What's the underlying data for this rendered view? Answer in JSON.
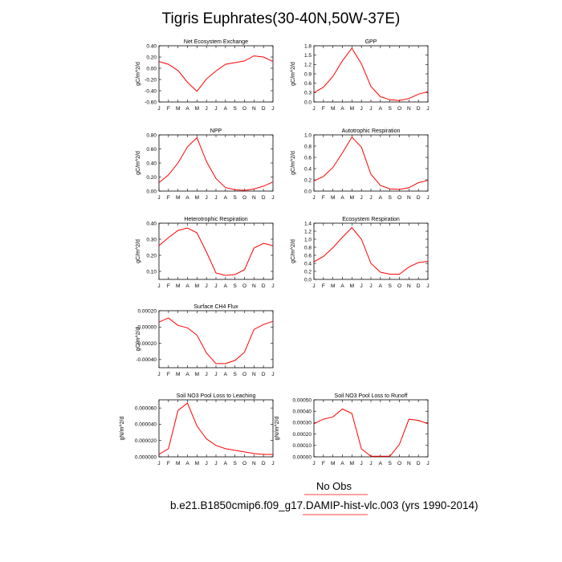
{
  "title": "Tigris Euphrates(30-40N,50W-37E)",
  "months": [
    "J",
    "F",
    "M",
    "A",
    "M",
    "J",
    "J",
    "A",
    "S",
    "O",
    "N",
    "D",
    "J"
  ],
  "legend": {
    "label": "No Obs"
  },
  "case": {
    "prefix": "b.e21.B1850cmip6.f09_g17.",
    "suffix": "DAMIP-hist-vlc.003 (yrs 1990-2014)"
  },
  "colors": {
    "series": "#ff0000",
    "axis": "#000000",
    "legend_line": "#ff0000",
    "obs_line": "#ff0000"
  },
  "chart_data": [
    {
      "type": "line",
      "title": "Net Ecosystem Exchange",
      "ylabel": "gC/m^2/d",
      "ylim": [
        -0.6,
        0.4
      ],
      "yticks": [
        "0.40",
        "0.20",
        "0.00",
        "-0.20",
        "-0.40",
        "-0.60"
      ],
      "ytick_values": [
        0.4,
        0.2,
        0,
        -0.2,
        -0.4,
        -0.6
      ],
      "values": [
        0.12,
        0.07,
        -0.04,
        -0.25,
        -0.41,
        -0.19,
        -0.05,
        0.07,
        0.1,
        0.13,
        0.22,
        0.2,
        0.12
      ]
    },
    {
      "type": "line",
      "title": "GPP",
      "ylabel": "gC/m^2/d",
      "ylim": [
        0,
        1.8
      ],
      "yticks": [
        "1.8",
        "1.5",
        "1.2",
        "0.9",
        "0.6",
        "0.3",
        "0.0"
      ],
      "ytick_values": [
        1.8,
        1.5,
        1.2,
        0.9,
        0.6,
        0.3,
        0
      ],
      "values": [
        0.3,
        0.47,
        0.82,
        1.32,
        1.72,
        1.22,
        0.5,
        0.17,
        0.07,
        0.05,
        0.11,
        0.25,
        0.33
      ]
    },
    {
      "type": "line",
      "title": "NPP",
      "ylabel": "gC/m^2/d",
      "ylim": [
        0,
        0.8
      ],
      "yticks": [
        "0.80",
        "0.60",
        "0.40",
        "0.20",
        "0.00"
      ],
      "ytick_values": [
        0.8,
        0.6,
        0.4,
        0.2,
        0
      ],
      "values": [
        0.12,
        0.23,
        0.4,
        0.63,
        0.76,
        0.42,
        0.18,
        0.05,
        0.02,
        0.01,
        0.03,
        0.07,
        0.13
      ]
    },
    {
      "type": "line",
      "title": "Autotrophic Respiration",
      "ylabel": "gC/m^2/d",
      "ylim": [
        0,
        1.0
      ],
      "yticks": [
        "1.0",
        "0.8",
        "0.6",
        "0.4",
        "0.2",
        "0.0"
      ],
      "ytick_values": [
        1,
        0.8,
        0.6,
        0.4,
        0.2,
        0
      ],
      "values": [
        0.18,
        0.26,
        0.42,
        0.68,
        0.96,
        0.78,
        0.3,
        0.1,
        0.04,
        0.03,
        0.06,
        0.15,
        0.19
      ]
    },
    {
      "type": "line",
      "title": "Heterotrophic Respiration",
      "ylabel": "gC/m^2/d",
      "ylim": [
        0.05,
        0.4
      ],
      "yticks": [
        "0.40",
        "0.30",
        "0.20",
        "0.10"
      ],
      "ytick_values": [
        0.4,
        0.3,
        0.2,
        0.1
      ],
      "values": [
        0.26,
        0.31,
        0.355,
        0.37,
        0.34,
        0.22,
        0.09,
        0.075,
        0.08,
        0.11,
        0.245,
        0.275,
        0.26
      ]
    },
    {
      "type": "line",
      "title": "Ecosystem Respiration",
      "ylabel": "gC/m^2/d",
      "ylim": [
        0,
        1.4
      ],
      "yticks": [
        "1.4",
        "1.2",
        "1.0",
        "0.8",
        "0.6",
        "0.4",
        "0.2",
        "0.0"
      ],
      "ytick_values": [
        1.4,
        1.2,
        1,
        0.8,
        0.6,
        0.4,
        0.2,
        0
      ],
      "values": [
        0.44,
        0.57,
        0.79,
        1.05,
        1.29,
        1.0,
        0.4,
        0.18,
        0.13,
        0.13,
        0.31,
        0.42,
        0.45
      ]
    },
    {
      "type": "line",
      "title": "Surface CH4 Flux",
      "ylabel": "gC/m^2/d",
      "ylim": [
        -0.0005,
        0.0002
      ],
      "yticks": [
        "0.00020",
        "-0.00000",
        "-0.00020",
        "-0.00040"
      ],
      "ytick_values": [
        0.0002,
        0,
        -0.0002,
        -0.0004
      ],
      "values": [
        6e-05,
        0.00011,
        2e-05,
        -1e-05,
        -0.0001,
        -0.00032,
        -0.00045,
        -0.00045,
        -0.00041,
        -0.00031,
        -3e-05,
        3e-05,
        7e-05
      ]
    },
    {
      "type": "line",
      "title": "Soil NO3 Pool Loss to Leaching",
      "ylabel": "gN/m^2/d",
      "ylim": [
        0,
        7e-05
      ],
      "yticks": [
        "0.000060",
        "0.000040",
        "0.000020",
        "0.000000"
      ],
      "ytick_values": [
        6e-05,
        4e-05,
        2e-05,
        0
      ],
      "values": [
        3e-06,
        1e-05,
        5.7e-05,
        6.6e-05,
        3.8e-05,
        2.2e-05,
        1.4e-05,
        1e-05,
        8e-06,
        6e-06,
        4e-06,
        3e-06,
        3e-06
      ]
    },
    {
      "type": "line",
      "title": "Soil NO3 Pool Loss to Runoff",
      "ylabel": "gN/m^2/d",
      "ylim": [
        0,
        0.0005
      ],
      "yticks": [
        "0.00050",
        "0.00040",
        "0.00030",
        "0.00020",
        "0.00010",
        "0.00000"
      ],
      "ytick_values": [
        0.0005,
        0.0004,
        0.0003,
        0.0002,
        0.0001,
        0
      ],
      "values": [
        0.00029,
        0.00033,
        0.00035,
        0.00042,
        0.00038,
        7e-05,
        5e-06,
        5e-06,
        5e-06,
        0.00011,
        0.00033,
        0.00032,
        0.00029
      ]
    }
  ]
}
